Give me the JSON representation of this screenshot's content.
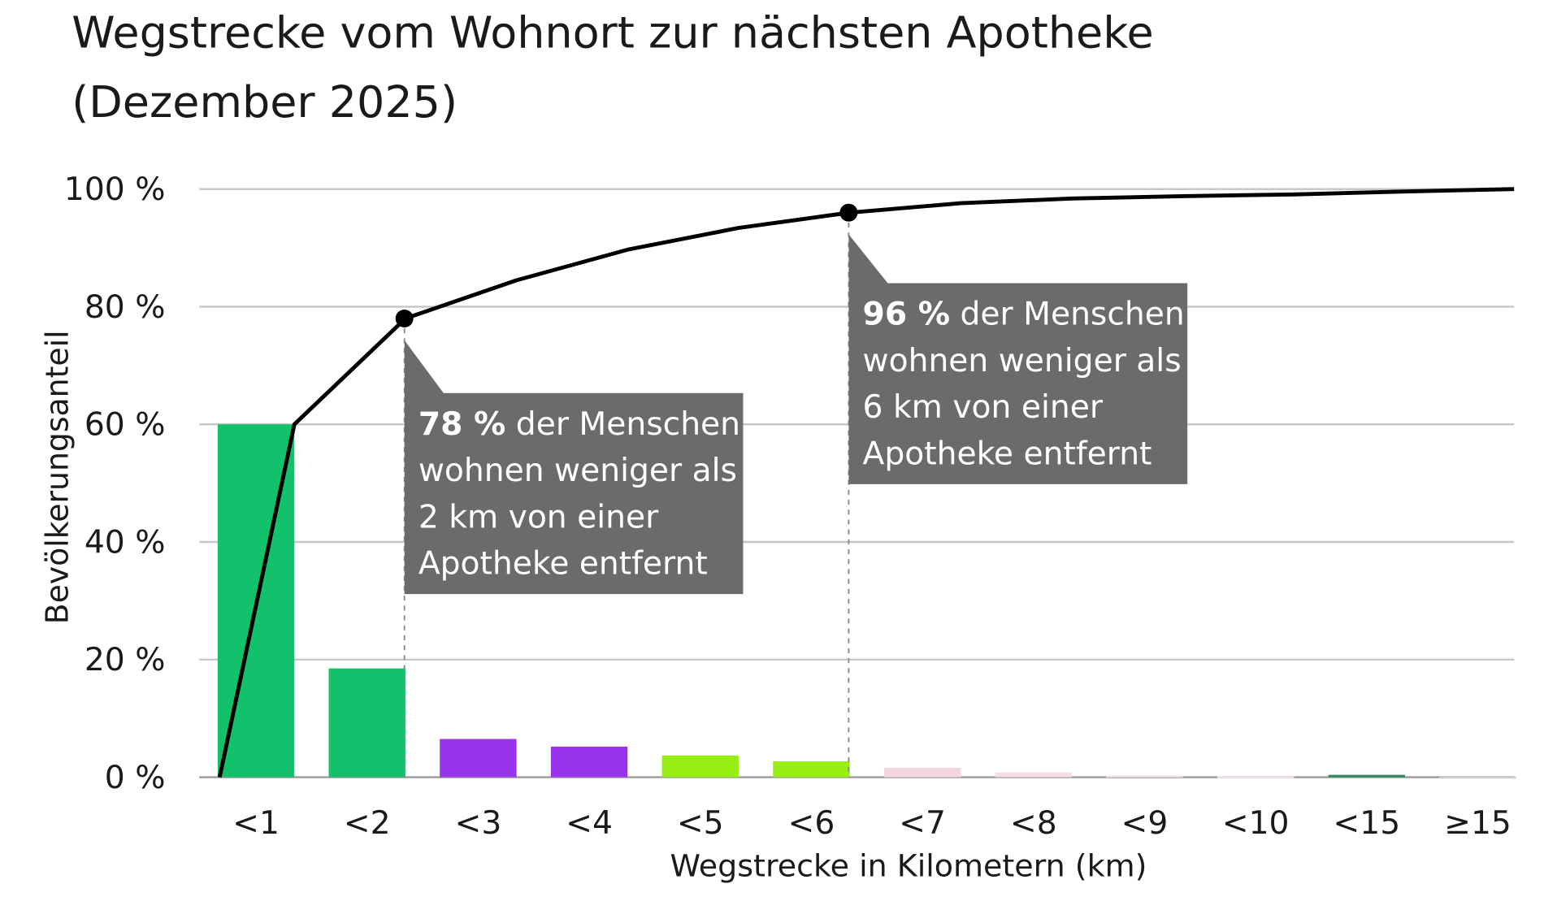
{
  "chart_data": {
    "type": "bar",
    "title": "Wegstrecke vom Wohnort zur nächsten Apotheke",
    "subtitle": "(Dezember 2025)",
    "xlabel": "Wegstrecke in Kilometern (km)",
    "ylabel": "Bevölkerungsanteil",
    "ylim": [
      0,
      100
    ],
    "y_ticks": [
      "0 %",
      "20 %",
      "40 %",
      "60 %",
      "80 %",
      "100 %"
    ],
    "y_tick_values": [
      0,
      20,
      40,
      60,
      80,
      100
    ],
    "grid": true,
    "categories": [
      "<1",
      "<2",
      "<3",
      "<4",
      "<5",
      "<6",
      "<7",
      "<8",
      "<9",
      "<10",
      "<15",
      "≥15"
    ],
    "values": [
      60,
      18.5,
      6.5,
      5.2,
      3.7,
      2.7,
      1.6,
      0.8,
      0.3,
      0.2,
      0.4,
      0.1
    ],
    "bar_colors": [
      "#12c16b",
      "#12c16b",
      "#9933ee",
      "#9933ee",
      "#99ee11",
      "#99ee11",
      "#f5d5e0",
      "#f5dde5",
      "#f5e0e8",
      "#f5e0e8",
      "#2e8b5f",
      "#cccccc"
    ],
    "cumulative_line": {
      "type": "line",
      "color": "#000000",
      "values": [
        60,
        78,
        84.5,
        89.7,
        93.4,
        96,
        97.6,
        98.4,
        98.8,
        99.1,
        99.6,
        100
      ]
    },
    "annotations": [
      {
        "category": "<2",
        "value": 78,
        "bold": "78 %",
        "lines": [
          " der Menschen",
          "wohnen weniger als",
          "2 km von einer",
          "Apotheke entfernt"
        ]
      },
      {
        "category": "<6",
        "value": 96,
        "bold": "96 %",
        "lines": [
          " der Menschen",
          "wohnen weniger als",
          "6 km von einer",
          "Apotheke entfernt"
        ]
      }
    ],
    "annotation_box_color": "#6b6b6b",
    "grid_color": "#c8c8c8"
  }
}
